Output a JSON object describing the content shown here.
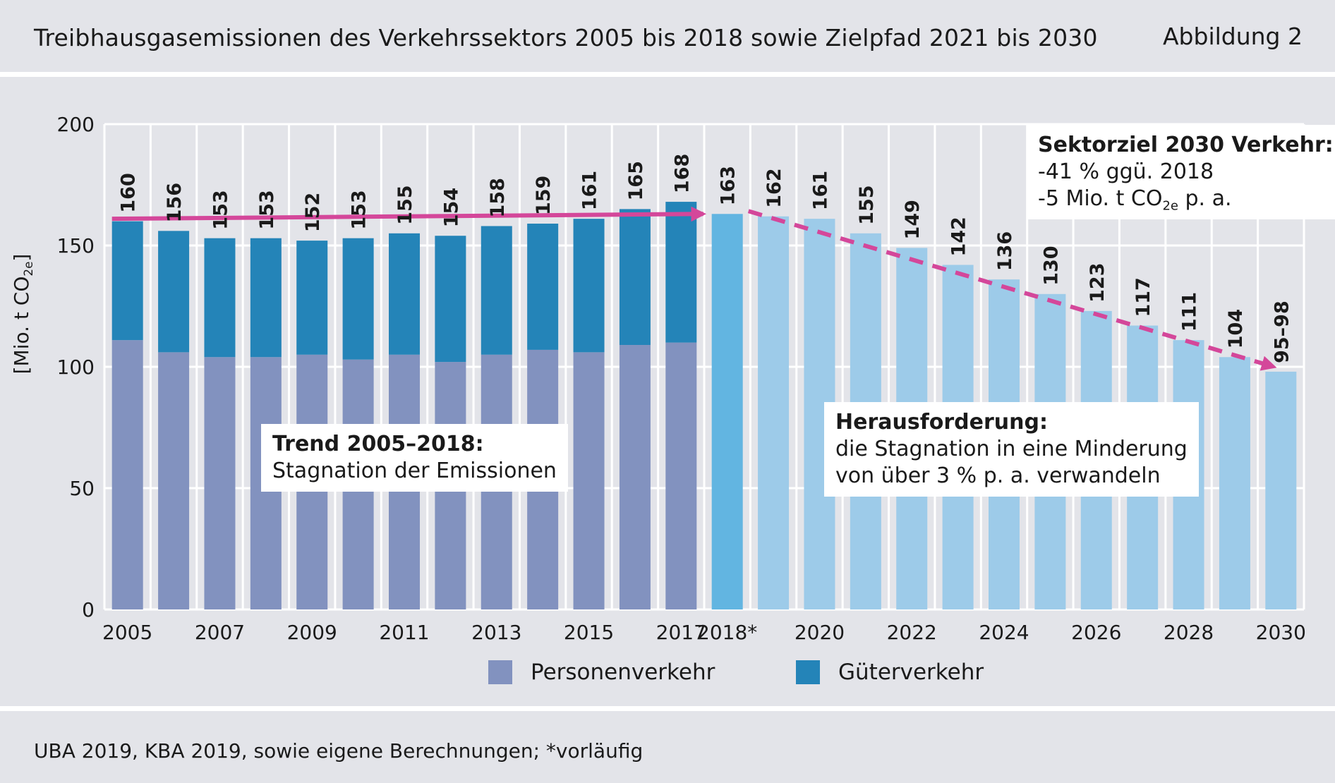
{
  "header": {
    "title": "Treibhausgasemissionen des Verkehrssektors 2005 bis 2018 sowie Zielpfad 2021 bis 2030",
    "figure_label": "Abbildung 2"
  },
  "footer": {
    "source": "UBA 2019, KBA 2019, sowie eigene Berechnungen; *vorläufig"
  },
  "colors": {
    "personen": "#8292bf",
    "gueter": "#2484b8",
    "year2018": "#62b5e1",
    "target": "#9dcbe9",
    "arrow": "#d4479a",
    "grid": "#ffffff",
    "background": "#e3e4e9"
  },
  "annotations": {
    "trend": {
      "title": "Trend 2005–2018:",
      "text": "Stagnation der Emissionen"
    },
    "challenge": {
      "title": "Herausforderung:",
      "line1": "die Stagnation in eine Minderung",
      "line2": "von über 3 % p. a. verwandeln"
    },
    "sector_goal": {
      "title": "Sektorziel 2030 Verkehr:",
      "line1": "-41 % ggü. 2018",
      "line2_prefix": "-5 Mio. t CO",
      "line2_sub": "2e",
      "line2_suffix": " p. a."
    }
  },
  "chart_data": {
    "type": "bar",
    "stacked": true,
    "title": "Treibhausgasemissionen des Verkehrssektors 2005 bis 2018 sowie Zielpfad 2021 bis 2030",
    "ylabel_prefix": "[Mio. t CO",
    "ylabel_sub": "2e",
    "ylabel_suffix": "]",
    "ylim": [
      0,
      200
    ],
    "yticks": [
      0,
      50,
      100,
      150,
      200
    ],
    "grid": true,
    "categories": [
      "2005",
      "2006",
      "2007",
      "2008",
      "2009",
      "2010",
      "2011",
      "2012",
      "2013",
      "2014",
      "2015",
      "2016",
      "2017",
      "2018*",
      "2019",
      "2020",
      "2021",
      "2022",
      "2023",
      "2024",
      "2025",
      "2026",
      "2027",
      "2028",
      "2029",
      "2030"
    ],
    "xtick_labels": [
      "2005",
      "",
      "2007",
      "",
      "2009",
      "",
      "2011",
      "",
      "2013",
      "",
      "2015",
      "",
      "2017",
      "2018*",
      "",
      "2020",
      "",
      "2022",
      "",
      "2024",
      "",
      "2026",
      "",
      "2028",
      "",
      "2030"
    ],
    "series": [
      {
        "name": "Personenverkehr",
        "values": [
          111,
          106,
          104,
          104,
          105,
          103,
          105,
          102,
          105,
          107,
          106,
          109,
          110,
          null,
          null,
          null,
          null,
          null,
          null,
          null,
          null,
          null,
          null,
          null,
          null,
          null
        ]
      },
      {
        "name": "Güterverkehr",
        "values": [
          49,
          50,
          49,
          49,
          47,
          50,
          50,
          52,
          53,
          52,
          55,
          56,
          58,
          null,
          null,
          null,
          null,
          null,
          null,
          null,
          null,
          null,
          null,
          null,
          null,
          null
        ]
      },
      {
        "name": "2018 (vorläufig)",
        "values": [
          null,
          null,
          null,
          null,
          null,
          null,
          null,
          null,
          null,
          null,
          null,
          null,
          null,
          163,
          null,
          null,
          null,
          null,
          null,
          null,
          null,
          null,
          null,
          null,
          null,
          null
        ]
      },
      {
        "name": "Zielpfad",
        "values": [
          null,
          null,
          null,
          null,
          null,
          null,
          null,
          null,
          null,
          null,
          null,
          null,
          null,
          null,
          162,
          161,
          155,
          149,
          142,
          136,
          130,
          123,
          117,
          111,
          104,
          98
        ]
      }
    ],
    "totals_labels": [
      "160",
      "156",
      "153",
      "153",
      "152",
      "153",
      "155",
      "154",
      "158",
      "159",
      "161",
      "165",
      "168",
      "163",
      "162",
      "161",
      "155",
      "149",
      "142",
      "136",
      "130",
      "123",
      "117",
      "111",
      "104",
      "95–98"
    ],
    "legend": [
      {
        "name": "Personenverkehr",
        "color": "#8292bf"
      },
      {
        "name": "Güterverkehr",
        "color": "#2484b8"
      }
    ],
    "trend_line": {
      "from": [
        "2005",
        161
      ],
      "to": [
        "2018*",
        163
      ],
      "style": "solid arrow"
    },
    "target_line": {
      "from": [
        "2018*",
        163
      ],
      "to": [
        "2030",
        100
      ],
      "style": "dashed arrow"
    }
  }
}
